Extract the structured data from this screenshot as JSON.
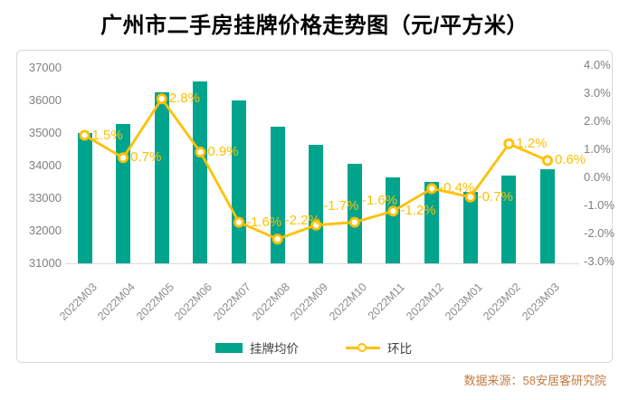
{
  "title": "广州市二手房挂牌价格走势图（元/平方米）",
  "footer": "数据来源：58安居客研究院",
  "colors": {
    "bar": "#00a48d",
    "line": "#ffc000",
    "axis_text": "#808080",
    "point_label_text": "#ffc000",
    "legend_text": "#404040",
    "source_text": "#c47a42",
    "border": "#d9d9d9"
  },
  "chart_data": {
    "type": "bar+line",
    "categories": [
      "2022M03",
      "2022M04",
      "2022M05",
      "2022M06",
      "2022M07",
      "2022M08",
      "2022M09",
      "2022M10",
      "2022M11",
      "2022M12",
      "2023M01",
      "2023M02",
      "2023M03"
    ],
    "series": [
      {
        "name": "挂牌均价",
        "type": "bar",
        "axis": "left",
        "values": [
          34990,
          35270,
          36250,
          36580,
          36000,
          35200,
          34630,
          34050,
          33640,
          33500,
          33200,
          33690,
          33900
        ]
      },
      {
        "name": "环比",
        "type": "line",
        "axis": "right",
        "values": [
          1.5,
          0.7,
          2.8,
          0.9,
          -1.6,
          -2.2,
          -1.7,
          -1.6,
          -1.2,
          -0.4,
          -0.7,
          1.2,
          0.6
        ],
        "point_labels": [
          "1.5%",
          "0.7%",
          "2.8%",
          "0.9%",
          "-1.6%",
          "-2.2%",
          "-1.7%",
          "-1.6%",
          "-1.2%",
          "-0.4%",
          "-0.7%",
          "1.2%",
          "0.6%"
        ]
      }
    ],
    "left_axis": {
      "min": 31000,
      "max": 37000,
      "ticks": [
        "37000",
        "36000",
        "35000",
        "34000",
        "33000",
        "32000",
        "31000"
      ]
    },
    "right_axis": {
      "min": -3.0,
      "max": 4.0,
      "ticks": [
        "4.0%",
        "3.0%",
        "2.0%",
        "1.0%",
        "0.0%",
        "-1.0%",
        "-2.0%",
        "-3.0%"
      ]
    },
    "grid": false,
    "legend_position": "bottom-center",
    "point_label_dy": [
      0,
      0,
      0,
      0,
      0,
      -20,
      -21,
      -24,
      0,
      0,
      0,
      0,
      0
    ]
  }
}
